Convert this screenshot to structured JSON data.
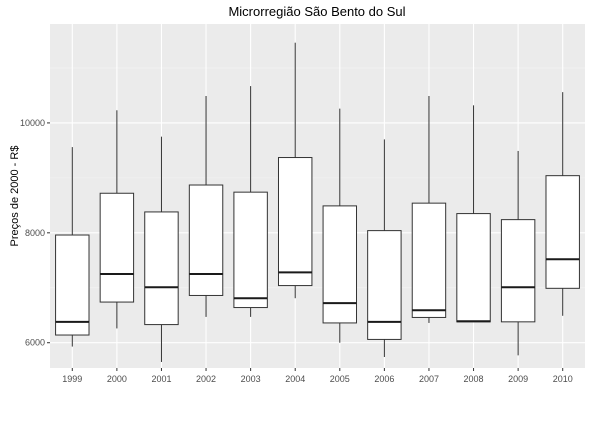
{
  "chart_data": {
    "type": "boxplot",
    "title": "Microrregião  São Bento do Sul",
    "xlabel": "",
    "ylabel": "Preços de 2000 - R$",
    "ylim": [
      5540,
      11800
    ],
    "y_ticks": [
      6000,
      8000,
      10000
    ],
    "y_tick_labels": [
      "6000",
      "8000",
      "10000"
    ],
    "grid": true,
    "categories": [
      "1999",
      "2000",
      "2001",
      "2002",
      "2003",
      "2004",
      "2005",
      "2006",
      "2007",
      "2008",
      "2009",
      "2010"
    ],
    "boxes": [
      {
        "min": 5930,
        "q1": 6140,
        "median": 6380,
        "q3": 7960,
        "max": 9560
      },
      {
        "min": 6260,
        "q1": 6740,
        "median": 7250,
        "q3": 8720,
        "max": 10230
      },
      {
        "min": 5650,
        "q1": 6330,
        "median": 7010,
        "q3": 8380,
        "max": 9750
      },
      {
        "min": 6470,
        "q1": 6860,
        "median": 7250,
        "q3": 8870,
        "max": 10490
      },
      {
        "min": 6470,
        "q1": 6640,
        "median": 6810,
        "q3": 8740,
        "max": 10670
      },
      {
        "min": 6810,
        "q1": 7040,
        "median": 7280,
        "q3": 9370,
        "max": 11460
      },
      {
        "min": 6000,
        "q1": 6360,
        "median": 6720,
        "q3": 8490,
        "max": 10260
      },
      {
        "min": 5740,
        "q1": 6060,
        "median": 6380,
        "q3": 8040,
        "max": 9700
      },
      {
        "min": 6360,
        "q1": 6460,
        "median": 6590,
        "q3": 8540,
        "max": 10490
      },
      {
        "min": 6380,
        "q1": 6380,
        "median": 6390,
        "q3": 8350,
        "max": 10320
      },
      {
        "min": 5770,
        "q1": 6380,
        "median": 7010,
        "q3": 8240,
        "max": 9490
      },
      {
        "min": 6490,
        "q1": 6990,
        "median": 7520,
        "q3": 9040,
        "max": 10560
      }
    ],
    "colors": {
      "panel_background": "#ebebeb",
      "grid_major": "#ffffff",
      "grid_minor": "#f5f5f5",
      "box_fill": "#ffffff",
      "box_stroke": "#333333",
      "median_stroke": "#1a1a1a"
    }
  }
}
